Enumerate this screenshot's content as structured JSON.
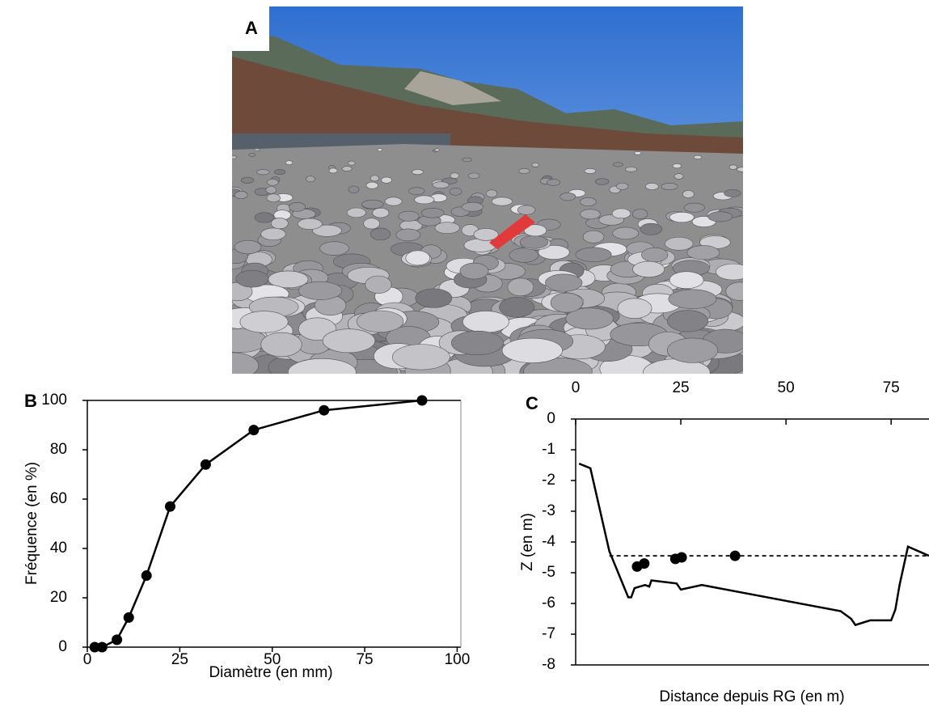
{
  "photo": {
    "label": "A"
  },
  "chart_data": [
    {
      "type": "line",
      "label": "B",
      "xlabel": "Diamètre (en mm)",
      "ylabel": "Fréquence (en %)",
      "x": [
        2,
        4,
        8,
        11.2,
        16,
        22.4,
        32,
        45,
        64,
        90.5
      ],
      "series": [
        {
          "color": "#000000",
          "marker": true,
          "values": [
            0,
            0,
            3,
            12,
            29,
            57,
            74,
            88,
            96,
            100
          ]
        }
      ],
      "xlim": [
        0,
        101
      ],
      "ylim": [
        0,
        100
      ],
      "xticks": [
        0,
        25,
        50,
        75,
        100
      ],
      "yticks": [
        0,
        20,
        40,
        60,
        80,
        100
      ],
      "xaxis_position": "bottom"
    },
    {
      "type": "line",
      "label": "C",
      "xlabel": "Distance depuis RG (en m)",
      "ylabel": "Z (en m)",
      "series": [
        {
          "color": "#000000",
          "marker": false,
          "x": [
            0.8,
            3.5,
            8,
            12.5,
            13.2,
            14,
            16.5,
            17.5,
            18,
            24,
            25,
            30,
            63,
            65.5,
            66.5,
            70,
            75,
            76,
            77,
            79,
            84
          ],
          "values": [
            -1.45,
            -1.6,
            -4.3,
            -5.8,
            -5.8,
            -5.5,
            -5.4,
            -5.45,
            -5.25,
            -5.35,
            -5.55,
            -5.4,
            -6.25,
            -6.5,
            -6.7,
            -6.55,
            -6.55,
            -6.2,
            -5.4,
            -4.15,
            -4.45
          ]
        },
        {
          "color": "#000000",
          "marker": false,
          "dash": true,
          "x": [
            8,
            84
          ],
          "values": [
            -4.45,
            -4.45
          ]
        },
        {
          "color": "#000000",
          "marker": true,
          "line": false,
          "x": [
            14.6,
            16.3,
            23.7,
            25.2,
            37.9
          ],
          "values": [
            -4.8,
            -4.7,
            -4.55,
            -4.5,
            -4.45
          ]
        }
      ],
      "xlim": [
        0,
        84
      ],
      "ylim": [
        -8,
        0
      ],
      "xticks": [
        0,
        25,
        50,
        75
      ],
      "yticks": [
        0,
        -1,
        -2,
        -3,
        -4,
        -5,
        -6,
        -7,
        -8
      ],
      "xaxis_position": "top"
    }
  ]
}
